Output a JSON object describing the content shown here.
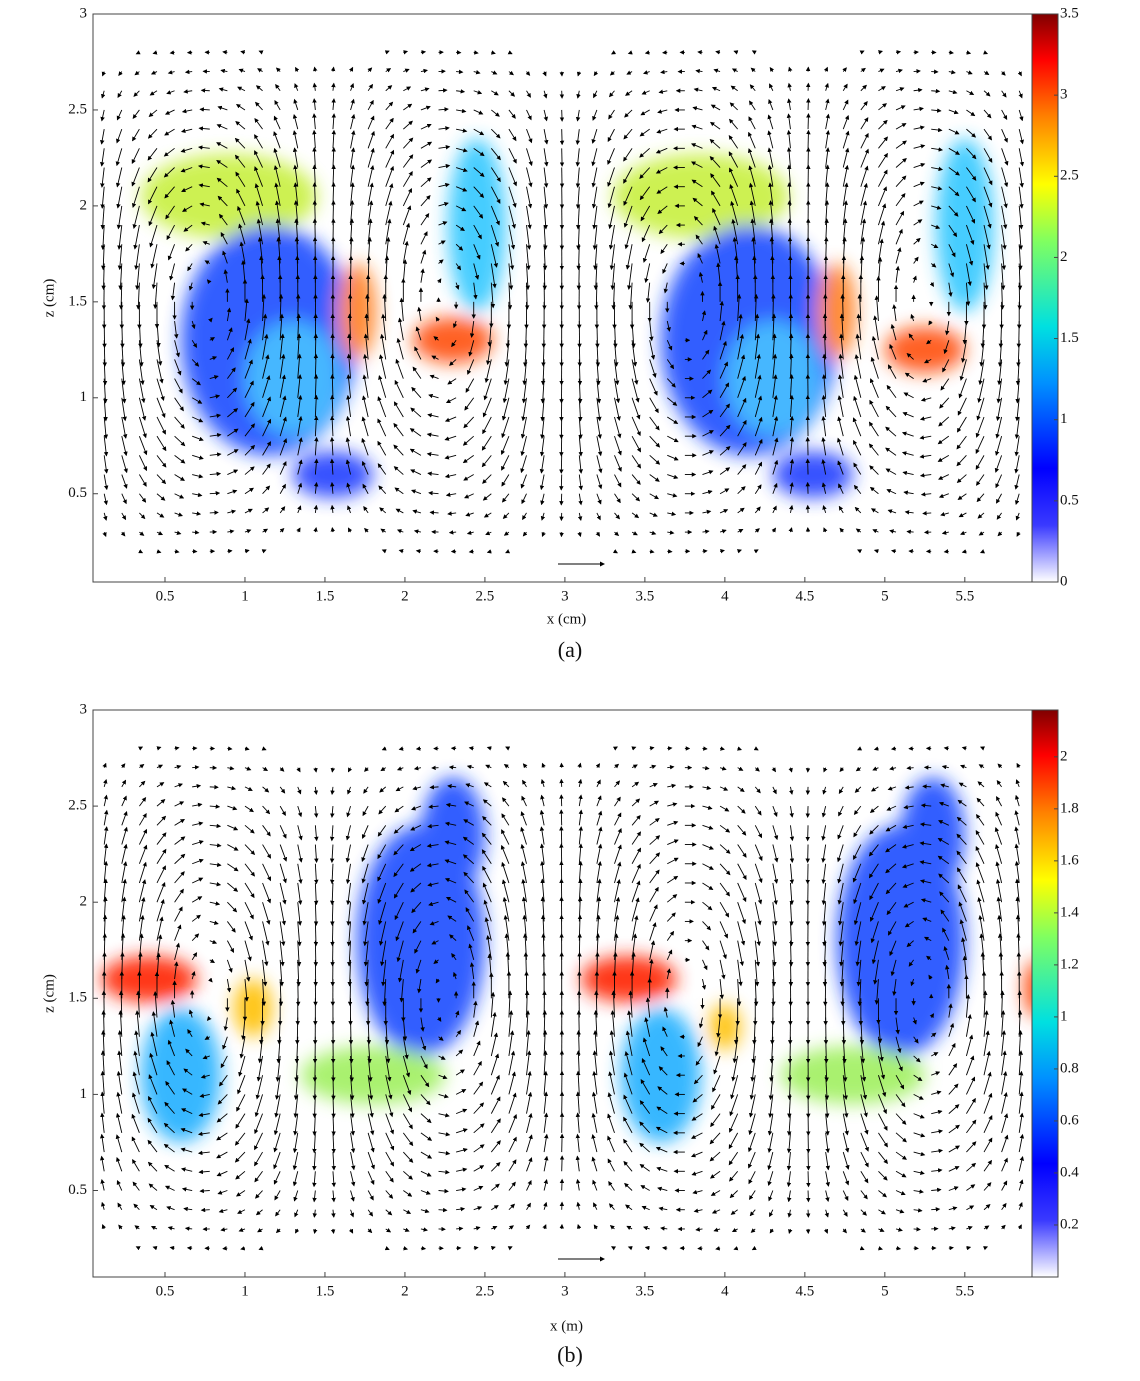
{
  "chart_data": [
    {
      "type": "quiver",
      "caption": "(a)",
      "xlabel": "x (cm)",
      "ylabel": "z (cm)",
      "xlim": [
        0.05,
        5.97
      ],
      "ylim": [
        0.04,
        3
      ],
      "xticks": [
        0.5,
        1,
        1.5,
        2,
        2.5,
        3,
        3.5,
        4,
        4.5,
        5,
        5.5
      ],
      "yticks": [
        0.5,
        1,
        1.5,
        2,
        2.5,
        3
      ],
      "colorbar": {
        "lim": [
          0,
          3.5
        ],
        "ticks": [
          0,
          0.5,
          1,
          1.5,
          2,
          2.5,
          3,
          3.5
        ]
      }
    },
    {
      "type": "quiver",
      "caption": "(b)",
      "xlabel": "x (m)",
      "ylabel": "z (cm)",
      "xlim": [
        0.05,
        5.97
      ],
      "ylim": [
        0.05,
        3
      ],
      "xticks": [
        0.5,
        1,
        1.5,
        2,
        2.5,
        3,
        3.5,
        4,
        4.5,
        5,
        5.5
      ],
      "yticks": [
        0.5,
        1,
        1.5,
        2,
        2.5,
        3
      ],
      "colorbar": {
        "lim": [
          0,
          2.18
        ],
        "ticks": [
          0.2,
          0.4,
          0.6,
          0.8,
          1,
          1.2,
          1.4,
          1.6,
          1.8,
          2
        ]
      }
    }
  ]
}
